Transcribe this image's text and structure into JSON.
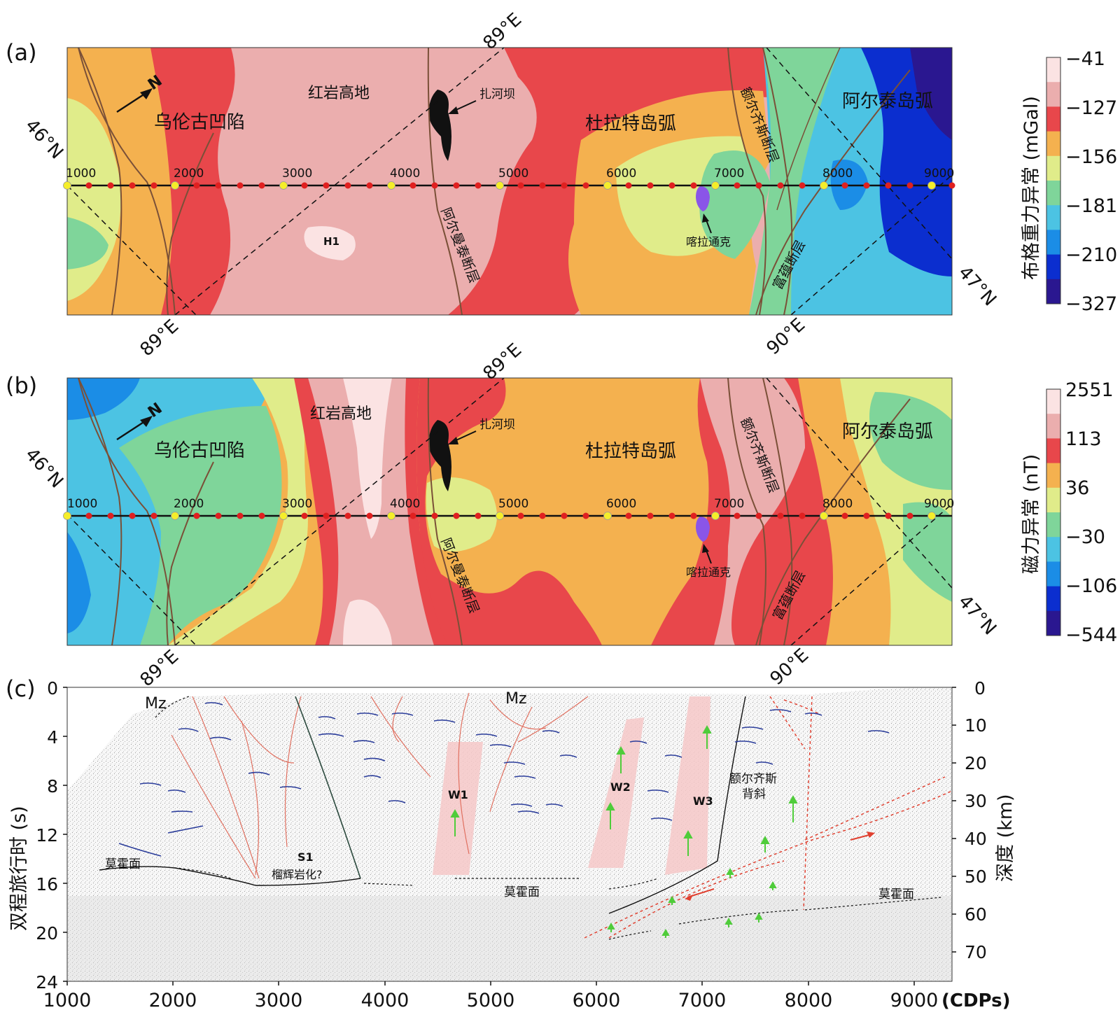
{
  "panel_labels": {
    "a": "(a)",
    "b": "(b)",
    "c": "(c)"
  },
  "map_labels": {
    "wulungu": "乌伦古凹陷",
    "hongyan": "红岩高地",
    "zhaheba": "扎河坝",
    "dulate": "杜拉特岛弧",
    "aertai": "阿尔泰岛弧",
    "eerqisi_fault": "额尔齐斯断层",
    "aermantai_fault": "阿尔曼泰断层",
    "fuyun_fault": "富蕴断层",
    "kalatongke": "喀拉通克",
    "h1": "H1",
    "north": "N"
  },
  "coords": {
    "n46": "46°N",
    "n47": "47°N",
    "e89": "89°E",
    "e90": "90°E"
  },
  "profile_ticks": [
    "1000",
    "2000",
    "3000",
    "4000",
    "5000",
    "6000",
    "7000",
    "8000",
    "9000"
  ],
  "colorbar_a": {
    "title": "布格重力异常 (mGal)",
    "ticks": [
      "−41",
      "−127",
      "−156",
      "−181",
      "−210",
      "−327"
    ],
    "colors": [
      "#fbe3e3",
      "#ebaeae",
      "#e8474b",
      "#f4b14f",
      "#e0ec8a",
      "#7fd59a",
      "#4cc3e3",
      "#1b8de6",
      "#0b2ecf",
      "#2a1790"
    ]
  },
  "colorbar_b": {
    "title": "磁力异常 (nT)",
    "ticks": [
      "2551",
      "113",
      "36",
      "−30",
      "−106",
      "−544"
    ],
    "colors": [
      "#fbe3e3",
      "#ebaeae",
      "#e8474b",
      "#f4b14f",
      "#e0ec8a",
      "#7fd59a",
      "#4cc3e3",
      "#1b8de6",
      "#0b2ecf",
      "#2a1790"
    ]
  },
  "section": {
    "ylabel_left": "双程旅行时 (s)",
    "ylabel_right": "深度 (km)",
    "xunit": "(CDPs)",
    "xticks": [
      "1000",
      "2000",
      "3000",
      "4000",
      "5000",
      "6000",
      "7000",
      "8000",
      "9000"
    ],
    "twt_ticks": [
      "0",
      "4",
      "8",
      "12",
      "16",
      "20",
      "24"
    ],
    "depth_ticks": [
      "0",
      "10",
      "20",
      "30",
      "40",
      "50",
      "60",
      "70"
    ],
    "labels": {
      "mz1": "Mz",
      "mz2": "Mz",
      "w1": "W1",
      "w2": "W2",
      "w3": "W3",
      "s1": "S1",
      "s1_note": "榴辉岩化?",
      "moho1": "莫霍面",
      "moho2": "莫霍面",
      "moho3": "莫霍面",
      "eerqisi1": "额尔齐斯",
      "eerqisi2": "背斜"
    }
  }
}
